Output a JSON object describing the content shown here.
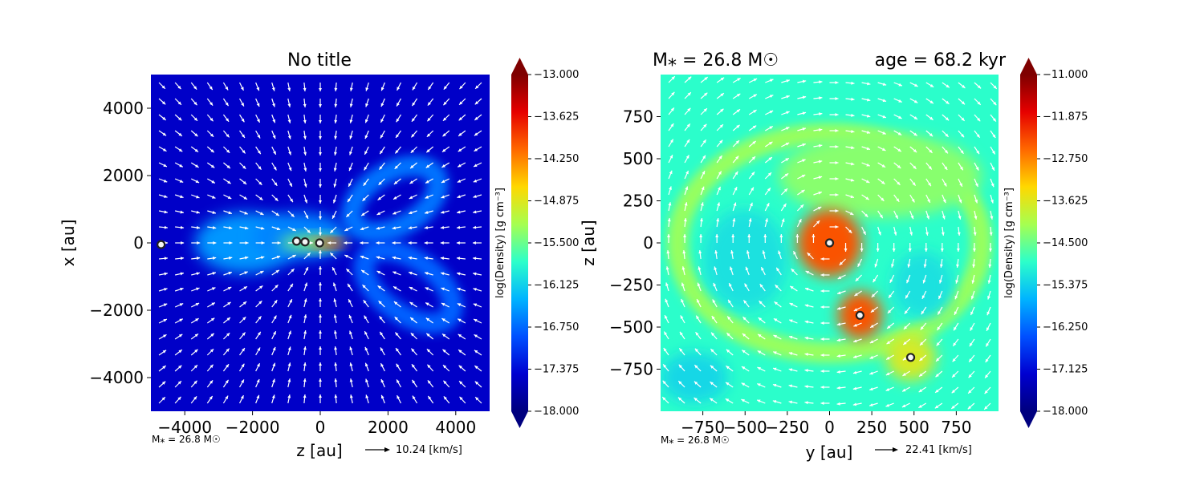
{
  "colors": {
    "colormap": [
      "#00007f",
      "#0000d0",
      "#0050ff",
      "#00b4ff",
      "#2cffca",
      "#a6ff50",
      "#ffd800",
      "#ff6800",
      "#e60000",
      "#7f0000"
    ],
    "quiver": "#ffffff",
    "sink_edge": "#222222",
    "sink_fill": "#f5f5f5"
  },
  "chart_data": [
    {
      "type": "heatmap",
      "title": "No title",
      "xlabel": "z [au]",
      "ylabel": "x [au]",
      "xlim": [
        -5000,
        5000
      ],
      "ylim": [
        -5000,
        5000
      ],
      "xticks": [
        -4000,
        -2000,
        0,
        2000,
        4000
      ],
      "yticks": [
        -4000,
        -2000,
        0,
        2000,
        4000
      ],
      "xtick_labels": [
        "−4000",
        "−2000",
        "0",
        "2000",
        "4000"
      ],
      "ytick_labels": [
        "−4000",
        "−2000",
        "0",
        "2000",
        "4000"
      ],
      "colorbar": {
        "label": "log(Density) [g cm⁻³]",
        "range": [
          -18.0,
          -13.0
        ],
        "ticks": [
          -13.0,
          -13.625,
          -14.25,
          -14.875,
          -15.5,
          -16.125,
          -16.75,
          -17.375,
          -18.0
        ],
        "tick_labels": [
          "−13.000",
          "−13.625",
          "−14.250",
          "−14.875",
          "−15.500",
          "−16.125",
          "−16.750",
          "−17.375",
          "−18.000"
        ],
        "extend": "both"
      },
      "background_value": -17.5,
      "features": [
        {
          "kind": "blob",
          "x": -2200,
          "y": 0,
          "rx": 1500,
          "ry": 900,
          "rot": 0,
          "value": -16.5
        },
        {
          "kind": "blob",
          "x": -600,
          "y": 200,
          "rx": 1400,
          "ry": 700,
          "rot": 0,
          "value": -16.6
        },
        {
          "kind": "ring",
          "x": 2200,
          "y": 1300,
          "rx": 1400,
          "ry": 800,
          "rot": -30,
          "value": -16.7
        },
        {
          "kind": "ring",
          "x": 2600,
          "y": -1300,
          "rx": 1500,
          "ry": 800,
          "rot": 35,
          "value": -16.8
        },
        {
          "kind": "blob",
          "x": -300,
          "y": 0,
          "rx": 900,
          "ry": 220,
          "rot": 0,
          "value": -15.4
        },
        {
          "kind": "blob",
          "x": 200,
          "y": 0,
          "rx": 500,
          "ry": 120,
          "rot": 0,
          "value": -14.0
        },
        {
          "kind": "blob",
          "x": 450,
          "y": 0,
          "rx": 230,
          "ry": 90,
          "rot": 0,
          "value": -13.4
        }
      ],
      "sinks": [
        {
          "x": -4700,
          "y": -50
        },
        {
          "x": -700,
          "y": 50
        },
        {
          "x": -450,
          "y": 30
        },
        {
          "x": -20,
          "y": 0
        }
      ],
      "flow": "infall",
      "footer_label": "M⁎ = 26.8 M☉",
      "quiver_key": "10.24 [km/s]"
    },
    {
      "type": "heatmap",
      "title": "M⁎ = 26.8 M☉",
      "title_right": "age = 68.2 kyr",
      "xlabel": "y [au]",
      "ylabel": "z [au]",
      "xlim": [
        -1000,
        1000
      ],
      "ylim": [
        -1000,
        1000
      ],
      "xticks": [
        -750,
        -500,
        -250,
        0,
        250,
        500,
        750
      ],
      "yticks": [
        -750,
        -500,
        -250,
        0,
        250,
        500,
        750
      ],
      "xtick_labels": [
        "−750",
        "−500",
        "−250",
        "0",
        "250",
        "500",
        "750"
      ],
      "ytick_labels": [
        "−750",
        "−500",
        "−250",
        "0",
        "250",
        "500",
        "750"
      ],
      "colorbar": {
        "label": "log(Density) [g cm⁻³]",
        "range": [
          -18.0,
          -11.0
        ],
        "ticks": [
          -11.0,
          -11.875,
          -12.75,
          -13.625,
          -14.5,
          -15.375,
          -16.25,
          -17.125,
          -18.0
        ],
        "tick_labels": [
          "−11.000",
          "−11.875",
          "−12.750",
          "−13.625",
          "−14.500",
          "−15.375",
          "−16.250",
          "−17.125",
          "−18.000"
        ],
        "extend": "both"
      },
      "background_value": -14.9,
      "features": [
        {
          "kind": "ring",
          "x": 0,
          "y": 0,
          "rx": 900,
          "ry": 650,
          "rot": 0,
          "value": -14.2
        },
        {
          "kind": "blob",
          "x": 300,
          "y": 400,
          "rx": 600,
          "ry": 250,
          "rot": 0,
          "value": -14.3
        },
        {
          "kind": "blob",
          "x": -500,
          "y": -100,
          "rx": 250,
          "ry": 300,
          "rot": 0,
          "value": -15.2
        },
        {
          "kind": "blob",
          "x": 550,
          "y": -250,
          "rx": 180,
          "ry": 200,
          "rot": 0,
          "value": -15.2
        },
        {
          "kind": "blob",
          "x": -800,
          "y": -800,
          "rx": 200,
          "ry": 150,
          "rot": 0,
          "value": -15.3
        },
        {
          "kind": "blob",
          "x": 480,
          "y": -680,
          "rx": 150,
          "ry": 140,
          "rot": 0,
          "value": -13.7
        },
        {
          "kind": "blob",
          "x": 180,
          "y": -430,
          "rx": 130,
          "ry": 140,
          "rot": 0,
          "value": -12.4
        },
        {
          "kind": "blob",
          "x": 0,
          "y": 0,
          "rx": 190,
          "ry": 200,
          "rot": 0,
          "value": -12.4
        }
      ],
      "sinks": [
        {
          "x": 0,
          "y": 0
        },
        {
          "x": 180,
          "y": -430
        },
        {
          "x": 480,
          "y": -680
        }
      ],
      "flow": "swirl",
      "footer_label": "M⁎ = 26.8 M☉",
      "quiver_key": "22.41 [km/s]"
    }
  ]
}
